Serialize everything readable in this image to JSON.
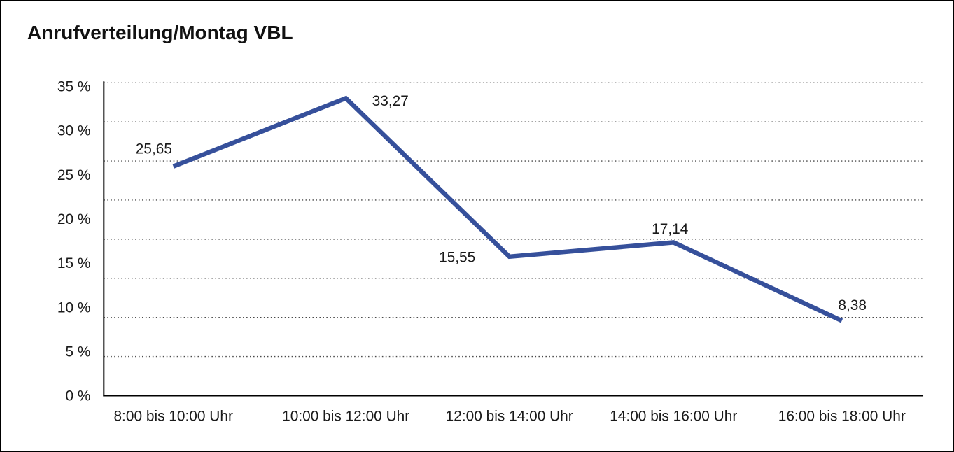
{
  "frame": {
    "background": "#ffffff",
    "border_color": "#000000"
  },
  "chart_data": {
    "type": "line",
    "title": "Anrufverteilung/Montag VBL",
    "categories": [
      "8:00 bis 10:00 Uhr",
      "10:00 bis 12:00 Uhr",
      "12:00 bis 14:00 Uhr",
      "14:00 bis 16:00 Uhr",
      "16:00 bis 18:00 Uhr"
    ],
    "values": [
      25.65,
      33.27,
      15.55,
      17.14,
      8.38
    ],
    "point_labels": [
      "25,65",
      "33,27",
      "15,55",
      "17,14",
      "8,38"
    ],
    "xlabel": "",
    "ylabel": "",
    "ylim": [
      0,
      35
    ],
    "ytick_values": [
      35,
      30,
      25,
      20,
      15,
      10,
      5,
      0
    ],
    "ytick_labels": [
      "35 %",
      "30 %",
      "25 %",
      "20 %",
      "15 %",
      "10 %",
      "5 %",
      "0 %"
    ],
    "grid": "horizontal-dotted",
    "dotted_gridline_count": 8,
    "legend": "none",
    "line_color": "#36509B",
    "axis_color": "#000000",
    "gridline_color": "#4a4a4a",
    "text_color": "#1a1a1a"
  }
}
